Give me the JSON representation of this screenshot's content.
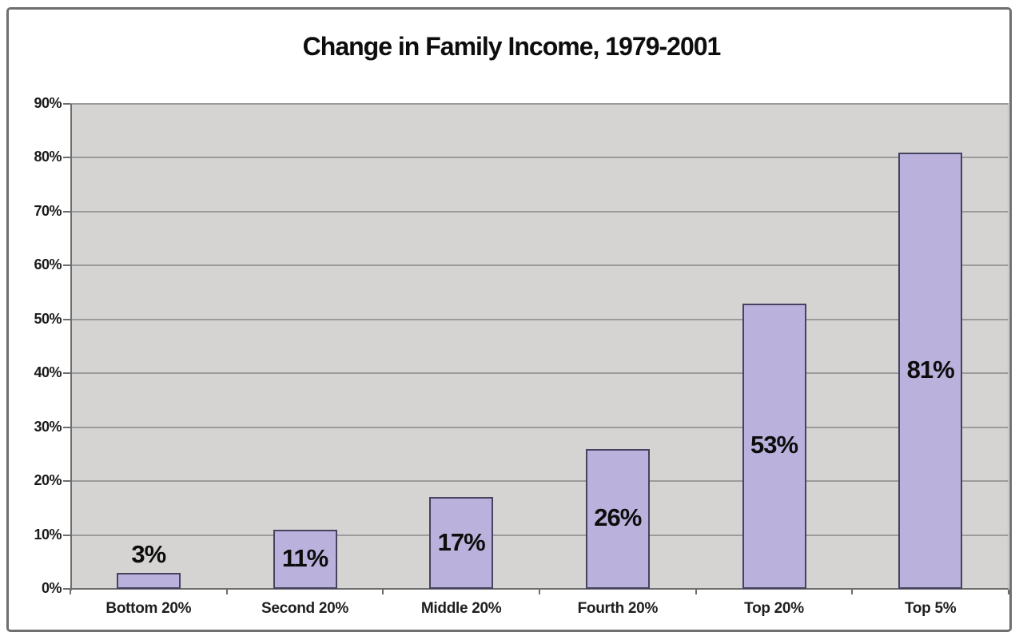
{
  "chart_data": {
    "type": "bar",
    "title": "Change in Family Income, 1979-2001",
    "categories": [
      "Bottom 20%",
      "Second 20%",
      "Middle 20%",
      "Fourth 20%",
      "Top 20%",
      "Top 5%"
    ],
    "values": [
      3,
      11,
      17,
      26,
      53,
      81
    ],
    "value_labels": [
      "3%",
      "11%",
      "17%",
      "26%",
      "53%",
      "81%"
    ],
    "ytick_labels": [
      "0%",
      "10%",
      "20%",
      "30%",
      "40%",
      "50%",
      "60%",
      "70%",
      "80%",
      "90%"
    ],
    "xlabel": "",
    "ylabel": "",
    "ylim": [
      0,
      90
    ],
    "ytick_step": 10,
    "grid": "horizontal",
    "legend": "none",
    "plot_background": "#d5d4d2",
    "gridline_color": "#9b9b9b",
    "axis_color": "#6e6e6e",
    "bar_fill": "#bab2dc",
    "bar_border": "#454360",
    "text_color": "#0d0d0d",
    "frame_border": "#6f6f6f"
  }
}
